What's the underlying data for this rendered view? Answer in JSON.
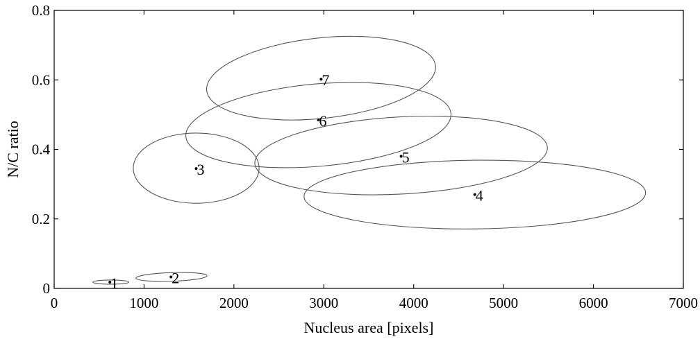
{
  "chart_data": {
    "type": "scatter",
    "title": "",
    "xlabel": "Nucleus area [pixels]",
    "ylabel": "N/C ratio",
    "xlim": [
      0,
      7000
    ],
    "ylim": [
      0,
      0.8
    ],
    "xticks": [
      0,
      1000,
      2000,
      3000,
      4000,
      5000,
      6000,
      7000
    ],
    "yticks": [
      0,
      0.2,
      0.4,
      0.6,
      0.8
    ],
    "xtick_labels": [
      "0",
      "1000",
      "2000",
      "3000",
      "4000",
      "5000",
      "6000",
      "7000"
    ],
    "ytick_labels": [
      "0",
      "0.2",
      "0.4",
      "0.6",
      "0.8"
    ],
    "grid": false,
    "legend": "none",
    "clusters": [
      {
        "label": "1",
        "center": [
          620,
          0.018
        ],
        "x_range": [
          430,
          830
        ],
        "y_range": [
          0.012,
          0.024
        ],
        "tilt": 0
      },
      {
        "label": "2",
        "center": [
          1300,
          0.033
        ],
        "x_range": [
          910,
          1700
        ],
        "y_range": [
          0.02,
          0.046
        ],
        "tilt": 0.06
      },
      {
        "label": "3",
        "center": [
          1580,
          0.345
        ],
        "x_range": [
          880,
          2280
        ],
        "y_range": [
          0.245,
          0.447
        ],
        "tilt": 0
      },
      {
        "label": "4",
        "center": [
          4680,
          0.27
        ],
        "x_range": [
          2780,
          6580
        ],
        "y_range": [
          0.17,
          0.37
        ],
        "tilt": 0.02
      },
      {
        "label": "5",
        "center": [
          3860,
          0.38
        ],
        "x_range": [
          2230,
          5490
        ],
        "y_range": [
          0.265,
          0.5
        ],
        "tilt": 0.1
      },
      {
        "label": "6",
        "center": [
          2940,
          0.485
        ],
        "x_range": [
          1460,
          4420
        ],
        "y_range": [
          0.34,
          0.6
        ],
        "tilt": 0.16
      },
      {
        "label": "7",
        "center": [
          2970,
          0.602
        ],
        "x_range": [
          1690,
          4250
        ],
        "y_range": [
          0.475,
          0.735
        ],
        "tilt": 0.2
      }
    ]
  }
}
